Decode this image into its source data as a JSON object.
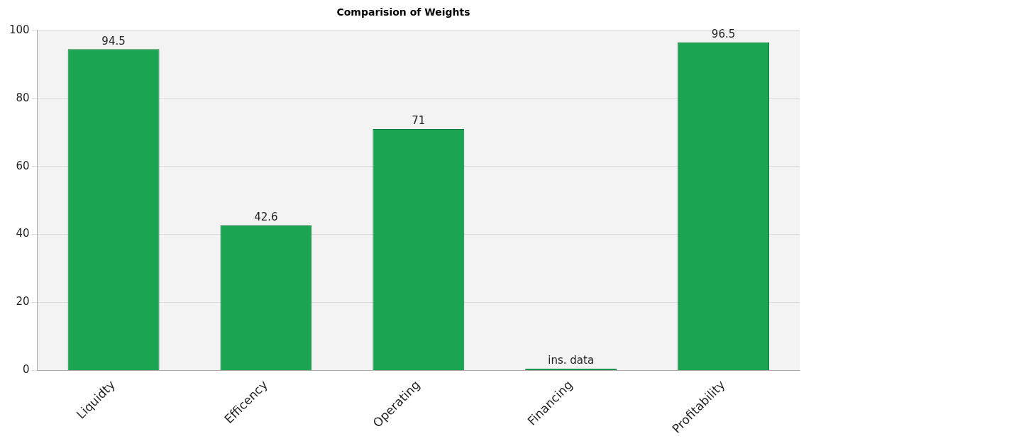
{
  "chart_data": {
    "type": "bar",
    "title": "Comparision of Weights",
    "categories": [
      "Liquidty",
      "Efficency",
      "Operating",
      "Financing",
      "Profitability"
    ],
    "values": [
      94.5,
      42.6,
      71,
      0.5,
      96.5
    ],
    "value_labels": [
      "94.5",
      "42.6",
      "71",
      "ins. data",
      "96.5"
    ],
    "color": "#1ba552",
    "ylim": [
      0,
      100
    ],
    "yticks": [
      0,
      20,
      40,
      60,
      80,
      100
    ],
    "grid": "y",
    "legend": false
  }
}
